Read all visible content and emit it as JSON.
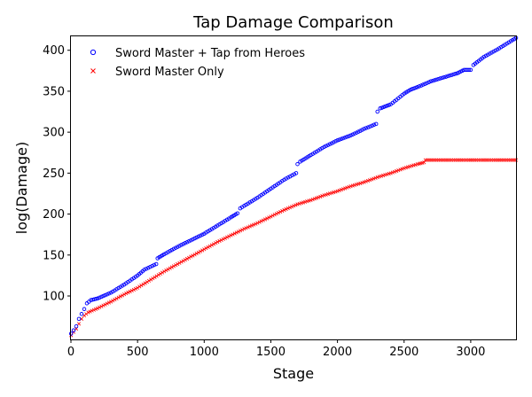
{
  "chart_data": {
    "type": "scatter",
    "title": "Tap Damage Comparison",
    "xlabel": "Stage",
    "ylabel": "log(Damage)",
    "xlim": [
      0,
      3340
    ],
    "ylim": [
      47,
      417
    ],
    "xticks": [
      0,
      500,
      1000,
      1500,
      2000,
      2500,
      3000
    ],
    "yticks": [
      100,
      150,
      200,
      250,
      300,
      350,
      400
    ],
    "legend_position": "top-left",
    "grid": false,
    "series": [
      {
        "name": "Sword Master + Tap from Heroes",
        "marker": "circle",
        "color": "#0000ff",
        "points": [
          [
            1,
            54
          ],
          [
            20,
            58
          ],
          [
            40,
            63
          ],
          [
            60,
            72
          ],
          [
            80,
            78
          ],
          [
            100,
            84
          ],
          [
            120,
            91
          ],
          [
            150,
            95
          ],
          [
            200,
            97
          ],
          [
            300,
            104
          ],
          [
            400,
            114
          ],
          [
            500,
            125
          ],
          [
            550,
            132
          ],
          [
            640,
            139
          ],
          [
            650,
            146
          ],
          [
            700,
            151
          ],
          [
            800,
            160
          ],
          [
            900,
            168
          ],
          [
            1000,
            176
          ],
          [
            1100,
            186
          ],
          [
            1200,
            196
          ],
          [
            1250,
            201
          ],
          [
            1270,
            207
          ],
          [
            1300,
            210
          ],
          [
            1400,
            220
          ],
          [
            1500,
            231
          ],
          [
            1600,
            242
          ],
          [
            1690,
            250
          ],
          [
            1700,
            261
          ],
          [
            1720,
            264
          ],
          [
            1800,
            272
          ],
          [
            1900,
            282
          ],
          [
            2000,
            290
          ],
          [
            2100,
            296
          ],
          [
            2200,
            304
          ],
          [
            2290,
            310
          ],
          [
            2300,
            325
          ],
          [
            2320,
            329
          ],
          [
            2400,
            334
          ],
          [
            2500,
            347
          ],
          [
            2550,
            352
          ],
          [
            2600,
            355
          ],
          [
            2700,
            362
          ],
          [
            2800,
            367
          ],
          [
            2900,
            372
          ],
          [
            2950,
            376
          ],
          [
            3000,
            376
          ],
          [
            3020,
            382
          ],
          [
            3100,
            392
          ],
          [
            3200,
            401
          ],
          [
            3300,
            411
          ],
          [
            3340,
            415
          ]
        ]
      },
      {
        "name": "Sword Master Only",
        "marker": "x",
        "color": "#ff0000",
        "points": [
          [
            1,
            52
          ],
          [
            20,
            56
          ],
          [
            40,
            60
          ],
          [
            60,
            66
          ],
          [
            80,
            72
          ],
          [
            100,
            76
          ],
          [
            130,
            80
          ],
          [
            200,
            85
          ],
          [
            300,
            93
          ],
          [
            400,
            102
          ],
          [
            500,
            110
          ],
          [
            600,
            120
          ],
          [
            700,
            130
          ],
          [
            800,
            139
          ],
          [
            900,
            148
          ],
          [
            1000,
            157
          ],
          [
            1100,
            166
          ],
          [
            1200,
            174
          ],
          [
            1300,
            182
          ],
          [
            1400,
            189
          ],
          [
            1500,
            197
          ],
          [
            1600,
            205
          ],
          [
            1700,
            212
          ],
          [
            1800,
            217
          ],
          [
            1900,
            223
          ],
          [
            2000,
            228
          ],
          [
            2100,
            234
          ],
          [
            2200,
            239
          ],
          [
            2300,
            245
          ],
          [
            2400,
            250
          ],
          [
            2500,
            256
          ],
          [
            2600,
            261
          ],
          [
            2650,
            263
          ],
          [
            2660,
            266
          ],
          [
            2800,
            266
          ],
          [
            3000,
            266
          ],
          [
            3200,
            266
          ],
          [
            3340,
            266
          ]
        ]
      }
    ]
  }
}
